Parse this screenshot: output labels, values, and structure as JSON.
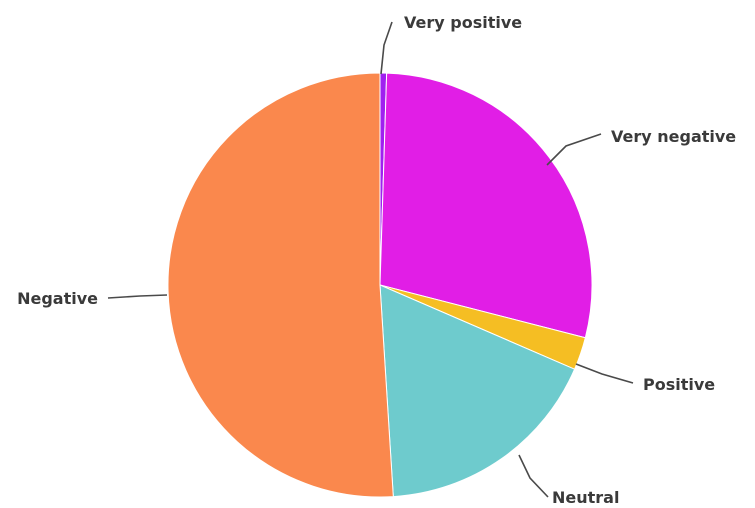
{
  "chart_data": {
    "type": "pie",
    "title": "",
    "start_angle_deg": 0,
    "direction": "clockwise",
    "slices": [
      {
        "label": "Very positive",
        "value": 0.5,
        "color": "#a020f0"
      },
      {
        "label": "Very negative",
        "value": 28.5,
        "color": "#e11ee6"
      },
      {
        "label": "Positive",
        "value": 2.5,
        "color": "#f5be23"
      },
      {
        "label": "Neutral",
        "value": 17.5,
        "color": "#6ecbcd"
      },
      {
        "label": "Negative",
        "value": 51.0,
        "color": "#fa884d"
      }
    ],
    "legend": "none",
    "labels": "outside-with-leader-lines"
  }
}
